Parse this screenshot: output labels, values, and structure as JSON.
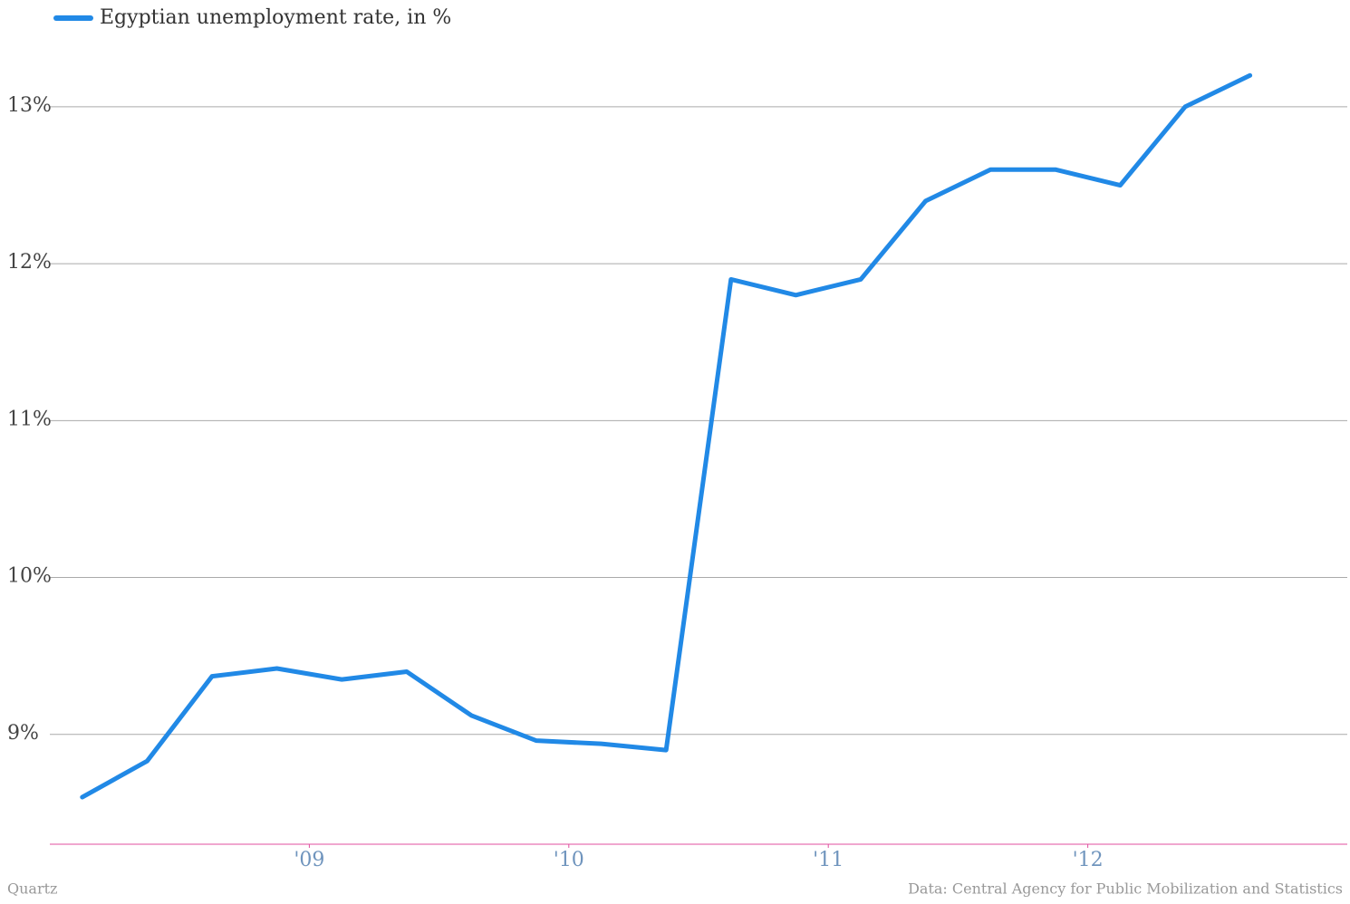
{
  "chart_data": {
    "type": "line",
    "legend": "top-left",
    "grid": true,
    "x": [
      2008.125,
      2008.375,
      2008.625,
      2008.875,
      2009.125,
      2009.375,
      2009.625,
      2009.875,
      2010.125,
      2010.375,
      2010.625,
      2010.875,
      2011.125,
      2011.375,
      2011.625,
      2011.875,
      2012.125,
      2012.375,
      2012.625
    ],
    "series": [
      {
        "name": "Egyptian unemployment rate, in %",
        "color": "#2189e6",
        "values": [
          8.6,
          8.83,
          9.37,
          9.42,
          9.35,
          9.4,
          9.12,
          8.96,
          8.94,
          8.9,
          11.9,
          11.8,
          11.9,
          12.4,
          12.6,
          12.6,
          12.5,
          13.0,
          13.2
        ]
      }
    ],
    "xlim": [
      2008,
      2013
    ],
    "xticks": [
      {
        "value": 2009,
        "label": "'09"
      },
      {
        "value": 2010,
        "label": "'10"
      },
      {
        "value": 2011,
        "label": "'11"
      },
      {
        "value": 2012,
        "label": "'12"
      }
    ],
    "ylim": [
      8.3,
      13.6
    ],
    "yticks": [
      {
        "value": 9,
        "label": "9%"
      },
      {
        "value": 10,
        "label": "10%"
      },
      {
        "value": 11,
        "label": "11%"
      },
      {
        "value": 12,
        "label": "12%"
      },
      {
        "value": 13,
        "label": "13%"
      }
    ],
    "credit": "Quartz",
    "source": "Data: Central Agency for Public Mobilization and Statistics"
  }
}
